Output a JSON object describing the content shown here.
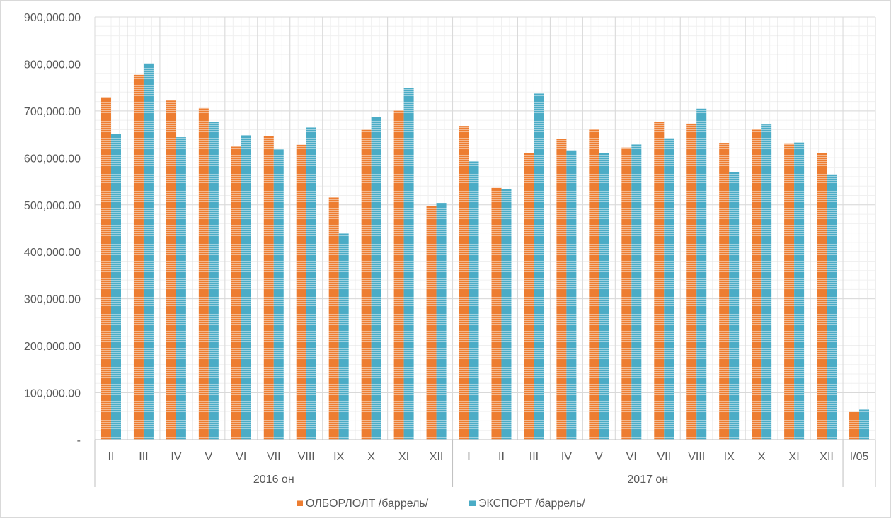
{
  "chart_data": {
    "type": "bar",
    "title": "",
    "xlabel": "",
    "ylabel": "",
    "ylim": [
      0,
      900000
    ],
    "yticks": [
      "-",
      "100,000.00",
      "200,000.00",
      "300,000.00",
      "400,000.00",
      "500,000.00",
      "600,000.00",
      "700,000.00",
      "800,000.00",
      "900,000.00"
    ],
    "grid": true,
    "legend_position": "bottom",
    "categories": [
      "II",
      "III",
      "IV",
      "V",
      "VI",
      "VII",
      "VIII",
      "IX",
      "X",
      "XI",
      "XII",
      "I",
      "II",
      "III",
      "IV",
      "V",
      "VI",
      "VII",
      "VIII",
      "IX",
      "X",
      "XI",
      "XII",
      "I/05"
    ],
    "groups": [
      {
        "label": "2016 он",
        "count": 11
      },
      {
        "label": "2017 он",
        "count": 12
      },
      {
        "label": "",
        "count": 1
      }
    ],
    "series": [
      {
        "name": "ОЛБОРЛОЛТ /баррель/",
        "color": "#ED7D31",
        "values": [
          729000,
          777000,
          722000,
          706000,
          625000,
          647000,
          628000,
          517000,
          660000,
          701000,
          498000,
          668000,
          536000,
          611000,
          640000,
          661000,
          622000,
          676000,
          673000,
          632000,
          662000,
          631000,
          611000,
          59000
        ]
      },
      {
        "name": "ЭКСПОРТ /баррель/",
        "color": "#4BACC6",
        "values": [
          651000,
          801000,
          644000,
          677000,
          648000,
          618000,
          666000,
          440000,
          687000,
          749000,
          504000,
          593000,
          533000,
          738000,
          616000,
          611000,
          630000,
          642000,
          705000,
          569000,
          671000,
          633000,
          565000,
          65000
        ]
      }
    ]
  }
}
